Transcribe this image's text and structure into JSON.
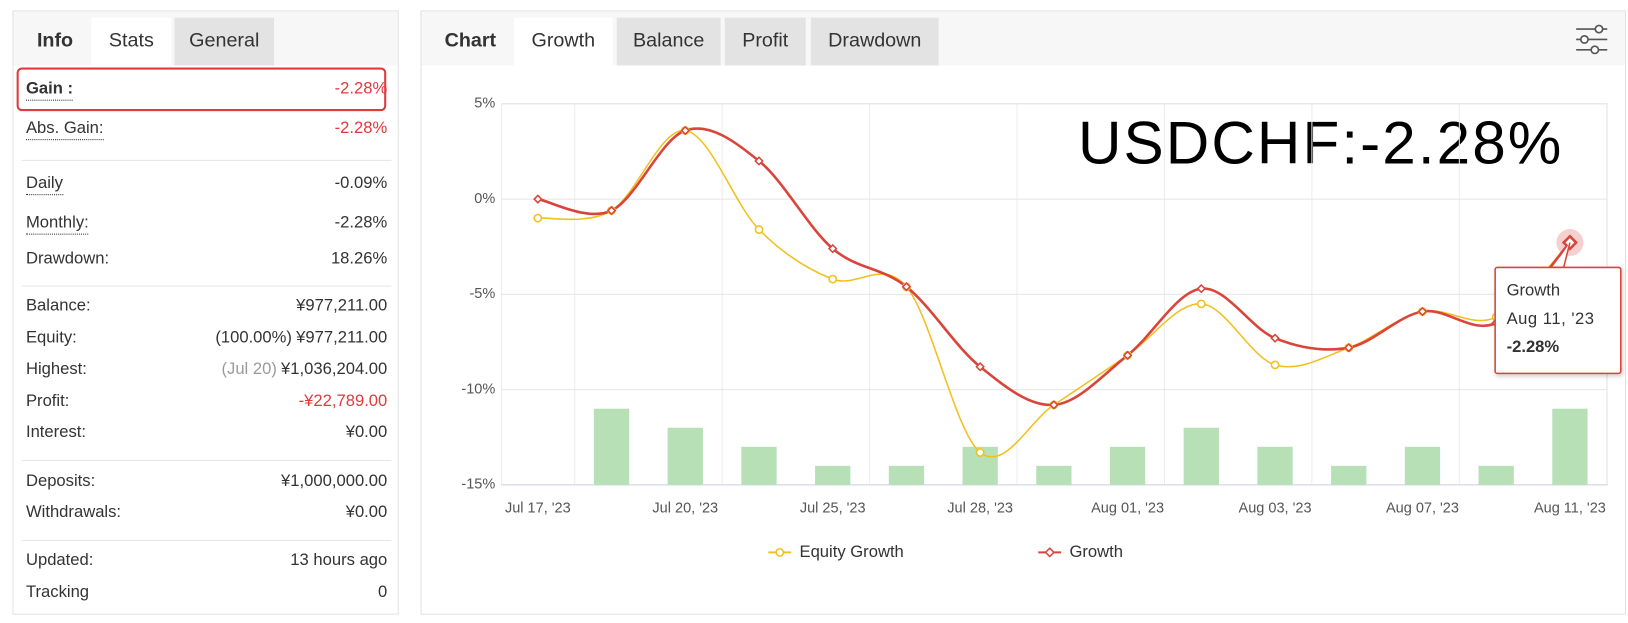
{
  "info_panel": {
    "tabs": [
      "Info",
      "Stats",
      "General"
    ],
    "rows": [
      {
        "label": "Gain :",
        "value": "-2.28%",
        "color": "#e0393e",
        "bold": true,
        "underline": true,
        "highlight": true
      },
      {
        "label": "Abs. Gain:",
        "value": "-2.28%",
        "color": "#e0393e",
        "underline": true
      },
      {
        "label": "Daily",
        "value": "-0.09%",
        "underline": true
      },
      {
        "label": "Monthly:",
        "value": "-2.28%",
        "underline": true
      },
      {
        "label": "Drawdown:",
        "value": "18.26%"
      },
      {
        "label": "Balance:",
        "value": "¥977,211.00"
      },
      {
        "label": "Equity:",
        "note": "(100.00%)",
        "value": "¥977,211.00"
      },
      {
        "label": "Highest:",
        "note": "(Jul 20)",
        "note_color": "#9a9a9a",
        "value": "¥1,036,204.00"
      },
      {
        "label": "Profit:",
        "value": "-¥22,789.00",
        "color": "#e0393e"
      },
      {
        "label": "Interest:",
        "value": "¥0.00"
      },
      {
        "label": "Deposits:",
        "value": "¥1,000,000.00"
      },
      {
        "label": "Withdrawals:",
        "value": "¥0.00"
      },
      {
        "label": "Updated:",
        "value": "13 hours ago"
      },
      {
        "label": "Tracking",
        "value": "0"
      }
    ]
  },
  "chart_panel": {
    "title": "Chart",
    "tabs": [
      "Growth",
      "Balance",
      "Profit",
      "Drawdown"
    ]
  },
  "chart_data": {
    "type": "line",
    "annotation": "USDCHF:-2.28%",
    "categories": [
      "Jul 17, '23",
      null,
      "Jul 20, '23",
      null,
      "Jul 25, '23",
      null,
      "Jul 28, '23",
      null,
      "Aug 01, '23",
      null,
      "Aug 03, '23",
      null,
      "Aug 07, '23",
      null,
      "Aug 11, '23"
    ],
    "ylim": [
      -15,
      5
    ],
    "yticks": [
      {
        "value": -15,
        "label": "-15%"
      },
      {
        "value": -10,
        "label": "-10%"
      },
      {
        "value": -5,
        "label": "-5%"
      },
      {
        "value": 0,
        "label": "0%"
      },
      {
        "value": 5,
        "label": "5%"
      }
    ],
    "y2lim": [
      0,
      20
    ],
    "grid": true,
    "series": [
      {
        "name": "Equity Growth",
        "color": "#f2c01e",
        "values": [
          -1.0,
          -0.6,
          3.6,
          -1.6,
          -4.2,
          -4.6,
          -13.3,
          -10.8,
          -8.2,
          -5.5,
          -8.7,
          -7.8,
          -5.9,
          -6.2,
          -2.28
        ]
      },
      {
        "name": "Growth",
        "color": "#d9453b",
        "values": [
          0.0,
          -0.6,
          3.6,
          2.0,
          -2.6,
          -4.6,
          -8.8,
          -10.8,
          -8.2,
          -4.7,
          -7.3,
          -7.8,
          -5.9,
          -6.5,
          -2.28
        ],
        "value_labels": [
          null,
          null,
          null,
          null,
          null,
          null,
          null,
          null,
          null,
          null,
          null,
          null,
          null,
          null,
          "-2.28%"
        ]
      },
      {
        "type": "bar",
        "axis": "y2",
        "color": "#b7e0b7",
        "values": [
          null,
          4,
          3,
          2,
          1,
          1,
          2,
          1,
          2,
          3,
          2,
          1,
          2,
          1,
          4
        ]
      }
    ]
  }
}
